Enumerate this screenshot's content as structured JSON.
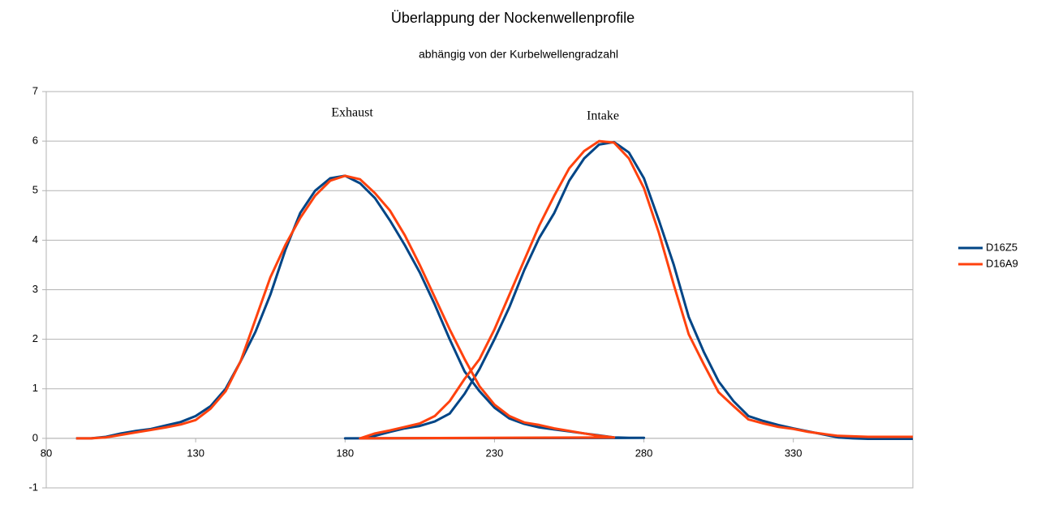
{
  "chart_data": {
    "type": "line",
    "title": "Überlappung der Nockenwellenprofile",
    "subtitle": "abhängig von der Kurbelwellengradzahl",
    "annotations": [
      "Exhaust",
      "Intake"
    ],
    "xlim": [
      80,
      370
    ],
    "xticks": [
      80,
      130,
      180,
      230,
      280,
      330
    ],
    "ylim": [
      -1,
      7
    ],
    "yticks": [
      -1,
      0,
      1,
      2,
      3,
      4,
      5,
      6,
      7
    ],
    "grid": true,
    "legend": "right",
    "series": [
      {
        "name": "D16Z5",
        "color": "#004586",
        "x": [
          90,
          95,
          100,
          105,
          110,
          115,
          120,
          125,
          130,
          135,
          140,
          145,
          150,
          155,
          160,
          165,
          170,
          175,
          180,
          185,
          190,
          195,
          200,
          205,
          210,
          215,
          220,
          225,
          230,
          235,
          240,
          245,
          250,
          255,
          260,
          265,
          270,
          275,
          280,
          180,
          185,
          190,
          195,
          200,
          205,
          210,
          215,
          220,
          225,
          230,
          235,
          240,
          245,
          250,
          255,
          260,
          265,
          270,
          275,
          280,
          285,
          290,
          295,
          300,
          305,
          310,
          315,
          320,
          325,
          330,
          335,
          340,
          345,
          350,
          355,
          360,
          365,
          370
        ],
        "values": [
          0,
          0,
          0.03,
          0.1,
          0.15,
          0.19,
          0.26,
          0.33,
          0.45,
          0.65,
          1.0,
          1.55,
          2.15,
          2.9,
          3.8,
          4.55,
          5.0,
          5.25,
          5.3,
          5.15,
          4.85,
          4.4,
          3.9,
          3.35,
          2.7,
          2.0,
          1.35,
          0.95,
          0.62,
          0.4,
          0.29,
          0.22,
          0.18,
          0.14,
          0.1,
          0.06,
          0.02,
          0.01,
          0.01,
          0,
          0,
          0.05,
          0.13,
          0.2,
          0.25,
          0.34,
          0.5,
          0.9,
          1.4,
          2.0,
          2.65,
          3.4,
          4.05,
          4.55,
          5.2,
          5.65,
          5.93,
          5.98,
          5.77,
          5.25,
          4.4,
          3.5,
          2.45,
          1.75,
          1.15,
          0.75,
          0.45,
          0.35,
          0.27,
          0.2,
          0.14,
          0.08,
          0.02,
          0,
          -0.01,
          -0.01,
          -0.01,
          -0.01
        ]
      },
      {
        "name": "D16A9",
        "color": "#ff420e",
        "x": [
          90,
          95,
          100,
          105,
          110,
          115,
          120,
          125,
          130,
          135,
          140,
          145,
          150,
          155,
          160,
          165,
          170,
          175,
          180,
          185,
          190,
          195,
          200,
          205,
          210,
          215,
          220,
          225,
          230,
          235,
          240,
          245,
          250,
          255,
          260,
          265,
          270,
          185,
          190,
          195,
          200,
          205,
          210,
          215,
          220,
          225,
          230,
          235,
          240,
          245,
          250,
          255,
          260,
          265,
          270,
          275,
          280,
          285,
          290,
          295,
          300,
          305,
          310,
          315,
          320,
          325,
          330,
          335,
          340,
          345,
          350,
          355,
          360,
          365,
          370
        ],
        "values": [
          0,
          0,
          0.02,
          0.07,
          0.12,
          0.17,
          0.22,
          0.28,
          0.37,
          0.6,
          0.95,
          1.55,
          2.4,
          3.25,
          3.9,
          4.45,
          4.9,
          5.2,
          5.3,
          5.23,
          4.95,
          4.6,
          4.1,
          3.5,
          2.85,
          2.2,
          1.6,
          1.05,
          0.68,
          0.45,
          0.32,
          0.27,
          0.2,
          0.15,
          0.1,
          0.05,
          0.02,
          0,
          0.1,
          0.16,
          0.23,
          0.3,
          0.45,
          0.75,
          1.2,
          1.6,
          2.2,
          2.9,
          3.6,
          4.3,
          4.9,
          5.45,
          5.8,
          6.0,
          5.97,
          5.65,
          5.05,
          4.15,
          3.1,
          2.1,
          1.5,
          0.93,
          0.65,
          0.38,
          0.3,
          0.23,
          0.19,
          0.13,
          0.09,
          0.05,
          0.04,
          0.03,
          0.03,
          0.03,
          0.03
        ]
      }
    ]
  }
}
